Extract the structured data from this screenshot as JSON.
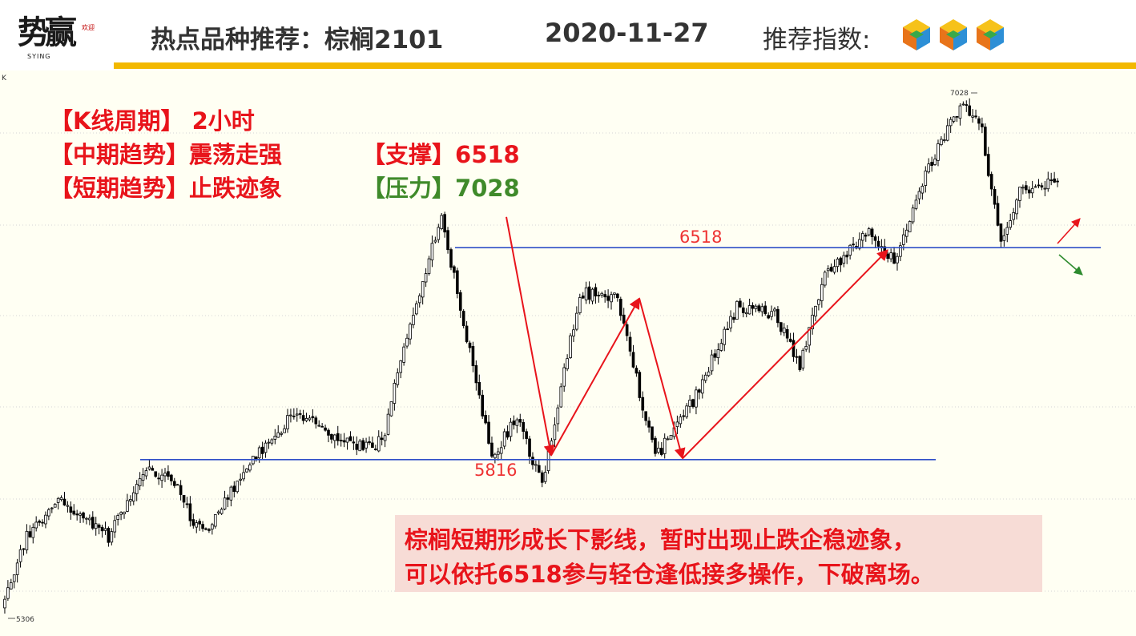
{
  "header": {
    "logo_text": "势赢",
    "logo_seal": "欢迎",
    "logo_sub": "SYING",
    "title": "热点品种推荐：棕榈2101",
    "date": "2020-11-27",
    "index_label": "推荐指数:",
    "rating_icons": 3,
    "bar_color": "#f2b800"
  },
  "info": {
    "period_label": "【K线周期】",
    "period_value": "2小时",
    "mid_trend_label": "【中期趋势】",
    "mid_trend_value": "震荡走强",
    "short_trend_label": "【短期趋势】",
    "short_trend_value": "止跌迹象",
    "support_label": "【支撑】",
    "support_value": "6518",
    "resistance_label": "【压力】",
    "resistance_value": "7028"
  },
  "note": {
    "line1": "棕榈短期形成长下影线，暂时出现止跌企稳迹象，",
    "line2": "可以依托6518参与轻仓逢低接多操作，下破离场。"
  },
  "chart_data": {
    "type": "candlestick",
    "price_range": [
      5306,
      7028
    ],
    "max_label": "7028",
    "min_label": "5306",
    "axis_mark": "K",
    "levels": [
      {
        "label": "6518",
        "value": 6518,
        "color": "#2f4fc7"
      },
      {
        "label": "5816",
        "value": 5816,
        "color": "#2f4fc7"
      }
    ],
    "wave_points": [
      6620,
      5830,
      6350,
      5820,
      6510
    ],
    "outlook": {
      "up_color": "#e8141b",
      "down_color": "#2e8b2e"
    },
    "anchors": [
      [
        0,
        5320
      ],
      [
        8,
        5560
      ],
      [
        18,
        5680
      ],
      [
        34,
        5560
      ],
      [
        46,
        5780
      ],
      [
        56,
        5740
      ],
      [
        60,
        5620
      ],
      [
        66,
        5600
      ],
      [
        72,
        5690
      ],
      [
        82,
        5840
      ],
      [
        94,
        5980
      ],
      [
        104,
        5900
      ],
      [
        118,
        5850
      ],
      [
        122,
        5900
      ],
      [
        128,
        6200
      ],
      [
        140,
        6620
      ],
      [
        156,
        5830
      ],
      [
        164,
        5950
      ],
      [
        172,
        5740
      ],
      [
        184,
        6370
      ],
      [
        196,
        6350
      ],
      [
        208,
        5820
      ],
      [
        220,
        6010
      ],
      [
        234,
        6320
      ],
      [
        246,
        6300
      ],
      [
        254,
        6130
      ],
      [
        262,
        6430
      ],
      [
        276,
        6570
      ],
      [
        284,
        6470
      ],
      [
        296,
        6810
      ],
      [
        306,
        7010
      ],
      [
        312,
        6900
      ],
      [
        318,
        6530
      ],
      [
        324,
        6700
      ],
      [
        336,
        6740
      ]
    ],
    "candle_count": 336,
    "seed": 20201127
  }
}
